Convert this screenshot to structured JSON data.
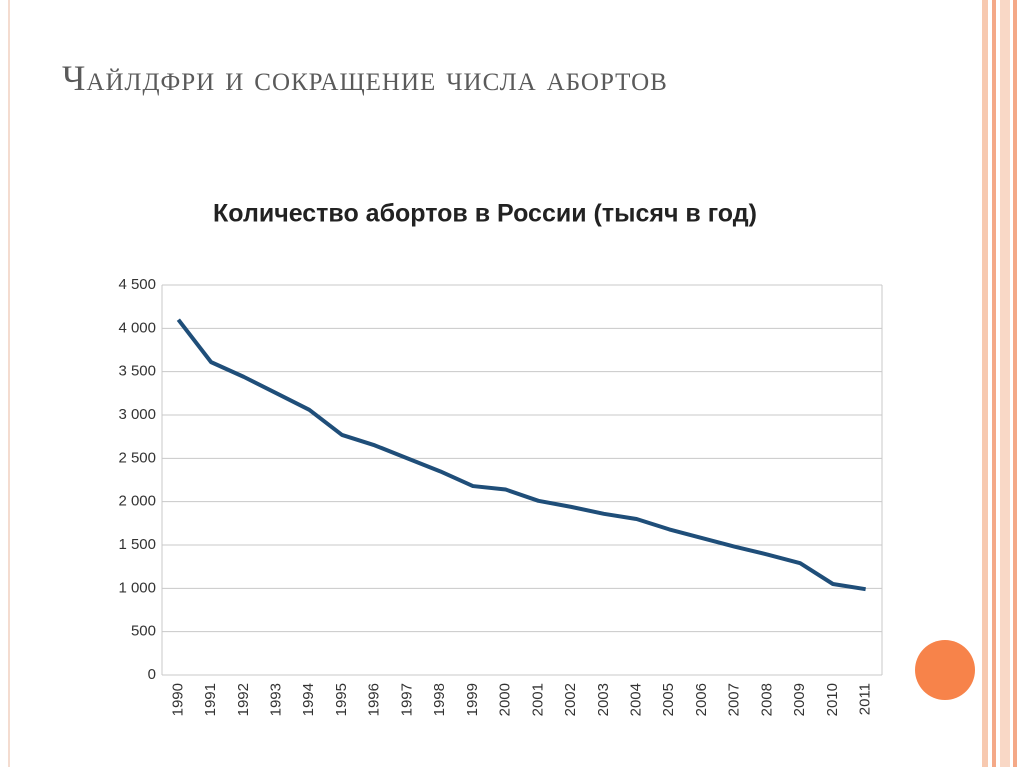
{
  "title": "Чайлдфри и сокращение числа абортов",
  "chart_data": {
    "type": "line",
    "title": "Количество абортов в России (тысяч в год)",
    "categories": [
      "1990",
      "1991",
      "1992",
      "1993",
      "1994",
      "1995",
      "1996",
      "1997",
      "1998",
      "1999",
      "2000",
      "2001",
      "2002",
      "2003",
      "2004",
      "2005",
      "2006",
      "2007",
      "2008",
      "2009",
      "2010",
      "2011"
    ],
    "series": [
      {
        "color": "#1f4e79",
        "values": [
          4100,
          3610,
          3440,
          3250,
          3060,
          2770,
          2650,
          2500,
          2350,
          2180,
          2140,
          2010,
          1940,
          1860,
          1800,
          1680,
          1580,
          1480,
          1390,
          1290,
          1050,
          990
        ]
      }
    ],
    "ylim": [
      0,
      4500
    ],
    "yticks": [
      0,
      500,
      {
        "value": 1000,
        "label": "1 000"
      },
      {
        "value": 1500,
        "label": "1 500"
      },
      {
        "value": 2000,
        "label": "2 000"
      },
      {
        "value": 2500,
        "label": "2 500"
      },
      {
        "value": 3000,
        "label": "3 000"
      },
      {
        "value": 3500,
        "label": "3 500"
      },
      {
        "value": 4000,
        "label": "4 000"
      },
      {
        "value": 4500,
        "label": "4 500"
      }
    ],
    "grid": true
  }
}
